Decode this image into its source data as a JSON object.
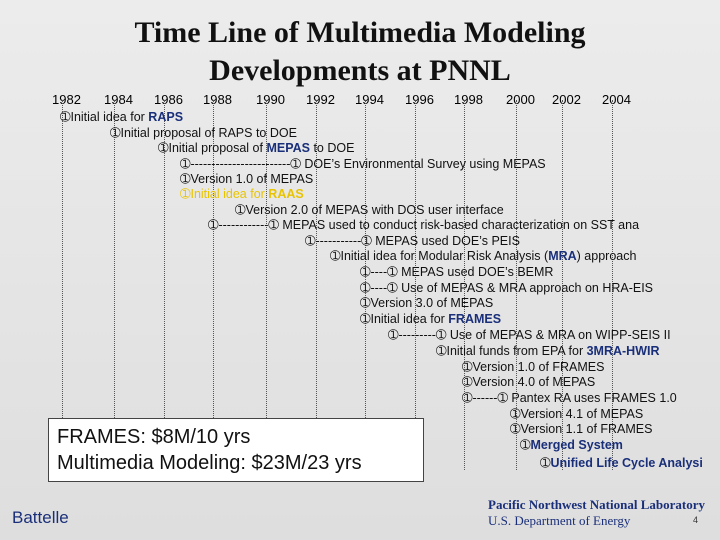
{
  "title_line1": "Time Line of Multimedia Modeling",
  "title_line2": "Developments at PNNL",
  "years": [
    "1982",
    "1984",
    "1986",
    "1988",
    "1990",
    "1992",
    "1994",
    "1996",
    "1998",
    "2000",
    "2002",
    "2004"
  ],
  "events": [
    {
      "pre": "➀Initial idea for ",
      "bold": "RAPS",
      "post": ""
    },
    {
      "pre": "➀Initial proposal of RAPS to DOE",
      "bold": "",
      "post": ""
    },
    {
      "pre": "➀Initial proposal of ",
      "bold": "MEPAS",
      "post": " to DOE"
    },
    {
      "pre": "➀------------------------➀ DOE’s Environmental Survey using MEPAS",
      "bold": "",
      "post": ""
    },
    {
      "pre": "➀Version 1.0 of MEPAS",
      "bold": "",
      "post": ""
    },
    {
      "pre": "➀Initial idea for ",
      "bold": "RAAS",
      "post": ""
    },
    {
      "pre": "➀Version 2.0 of MEPAS with DOS user interface",
      "bold": "",
      "post": ""
    },
    {
      "pre": "➀------------➀ MEPAS used to conduct risk-based characterization on SST ana",
      "bold": "",
      "post": ""
    },
    {
      "pre": "➀-----------➀ MEPAS used DOE’s PEIS",
      "bold": "",
      "post": ""
    },
    {
      "pre": "➀Initial idea for Modular Risk Analysis (",
      "bold": "MRA",
      "post": ") approach"
    },
    {
      "pre": "➀----➀ MEPAS used DOE’s BEMR",
      "bold": "",
      "post": ""
    },
    {
      "pre": "➀----➀ Use of MEPAS & MRA approach on HRA-EIS",
      "bold": "",
      "post": ""
    },
    {
      "pre": "➀Version 3.0 of MEPAS",
      "bold": "",
      "post": ""
    },
    {
      "pre": "➀Initial idea for ",
      "bold": "FRAMES",
      "post": ""
    },
    {
      "pre": "➀---------➀ Use of MEPAS & MRA on WIPP-SEIS II",
      "bold": "",
      "post": ""
    },
    {
      "pre": "➀Initial funds from EPA for ",
      "bold": "3MRA-HWIR",
      "post": ""
    },
    {
      "pre": "➀Version 1.0 of FRAMES",
      "bold": "",
      "post": ""
    },
    {
      "pre": "➀Version 4.0 of MEPAS",
      "bold": "",
      "post": ""
    },
    {
      "pre": "➀------➀ Pantex RA uses FRAMES 1.0",
      "bold": "",
      "post": ""
    },
    {
      "pre": "➀Version 4.1 of MEPAS",
      "bold": "",
      "post": ""
    },
    {
      "pre": "➀Version 1.1 of FRAMES",
      "bold": "",
      "post": ""
    },
    {
      "pre": "➀",
      "bold": "Merged System",
      "post": ""
    },
    {
      "pre": "➀",
      "bold": "Unified Life Cycle Analysi",
      "post": ""
    }
  ],
  "funding_line1": "FRAMES: $8M/10 yrs",
  "funding_line2": "Multimedia Modeling: $23M/23 yrs",
  "logo_left": "Battelle",
  "logo_right_line1": "Pacific Northwest National Laboratory",
  "logo_right_line2": "U.S. Department of Energy",
  "page_number": "4",
  "colors": {
    "highlight": "#1a2f7a",
    "yellow": "#e8c400"
  }
}
